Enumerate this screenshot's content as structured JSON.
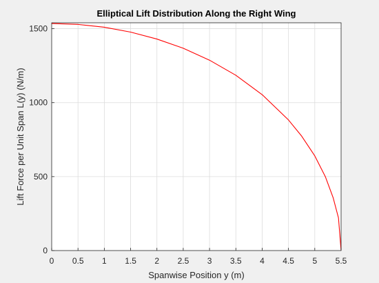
{
  "chart_data": {
    "type": "line",
    "title": "Elliptical Lift Distribution Along the Right Wing",
    "xlabel": "Spanwise Position y (m)",
    "ylabel": "Lift Force per Unit Span L(y) (N/m)",
    "xlim": [
      0,
      5.5
    ],
    "ylim": [
      0,
      1540
    ],
    "xticks": [
      "0",
      "0.5",
      "1",
      "1.5",
      "2",
      "2.5",
      "3",
      "3.5",
      "4",
      "4.5",
      "5",
      "5.5"
    ],
    "yticks": [
      "0",
      "500",
      "1000",
      "1500"
    ],
    "grid": true,
    "series": [
      {
        "x": [
          0,
          0.5,
          1,
          1.5,
          2,
          2.5,
          3,
          3.5,
          4,
          4.5,
          4.75,
          5,
          5.2,
          5.35,
          5.45,
          5.5
        ],
        "y": [
          1535,
          1529,
          1510,
          1477,
          1430,
          1368,
          1287,
          1185,
          1054,
          883,
          774,
          640,
          500,
          356,
          221,
          0
        ],
        "color": "#ff0000"
      }
    ]
  }
}
